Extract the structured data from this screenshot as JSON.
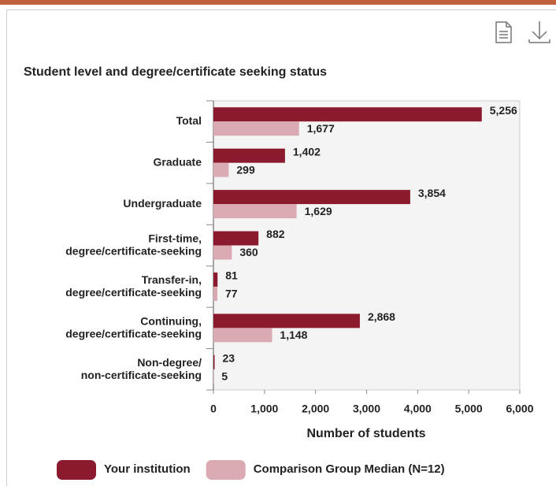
{
  "chart_data": {
    "type": "bar",
    "orientation": "horizontal",
    "title": "Student level and degree/certificate seeking status",
    "categories": [
      [
        "Total"
      ],
      [
        "Graduate"
      ],
      [
        "Undergraduate"
      ],
      [
        "First-time,",
        "degree/certificate-seeking"
      ],
      [
        "Transfer-in,",
        "degree/certificate-seeking"
      ],
      [
        "Continuing,",
        "degree/certificate-seeking"
      ],
      [
        "Non-degree/",
        "non-certificate-seeking"
      ]
    ],
    "series": [
      {
        "name": "Your institution",
        "color": "#8b1a2e",
        "values": [
          5256,
          1402,
          3854,
          882,
          81,
          2868,
          23
        ],
        "value_labels": [
          "5,256",
          "1,402",
          "3,854",
          "882",
          "81",
          "2,868",
          "23"
        ]
      },
      {
        "name": "Comparison Group Median (N=12)",
        "color": "#dba9b1",
        "values": [
          1677,
          299,
          1629,
          360,
          77,
          1148,
          5
        ],
        "value_labels": [
          "1,677",
          "299",
          "1,629",
          "360",
          "77",
          "1,148",
          "5"
        ]
      }
    ],
    "xlabel": "Number of students",
    "xlim": [
      0,
      6000
    ],
    "xticks": [
      0,
      {
        "value": 1000,
        "label": "1,000"
      },
      {
        "value": 2000,
        "label": "2,000"
      },
      {
        "value": 3000,
        "label": "3,000"
      },
      {
        "value": 4000,
        "label": "4,000"
      },
      {
        "value": 5000,
        "label": "5,000"
      },
      {
        "value": 6000,
        "label": "6,000"
      }
    ],
    "legend": "bottom"
  }
}
